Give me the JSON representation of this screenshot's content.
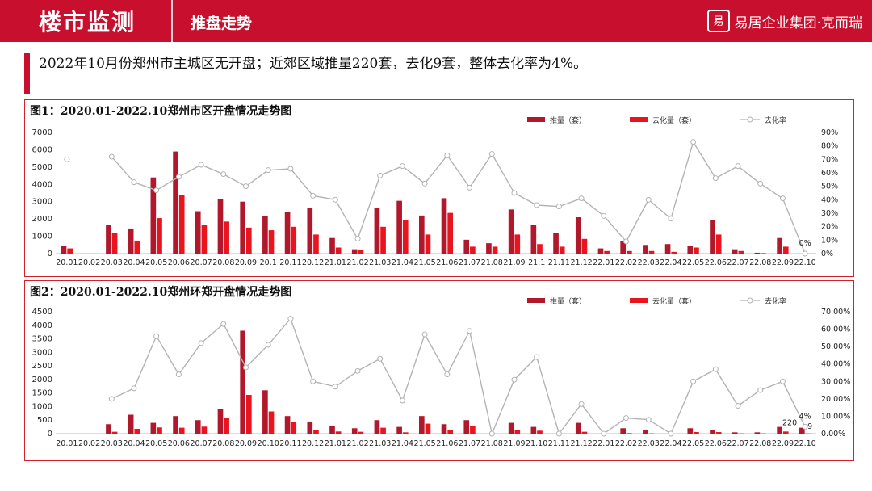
{
  "header": {
    "title": "楼市监测",
    "subtitle": "推盘走势",
    "logo_text": "易居企业集团·克而瑞",
    "logo_seal": "易"
  },
  "summary": "2022年10月份郑州市主城区无开盘；近郊区域推量220套，去化9套，整体去化率为4%。",
  "colors": {
    "brand": "#c8102e",
    "supply": "#b2182b",
    "sold": "#e8141e",
    "rate": "#b3b3b3"
  },
  "chart_data": [
    {
      "type": "bar",
      "title": "图1：2020.01-2022.10郑州市区开盘情况走势图",
      "legend": [
        "推量（套）",
        "去化量（套）",
        "去化率"
      ],
      "categories": [
        "20.01",
        "20.02",
        "20.03",
        "20.04",
        "20.05",
        "20.06",
        "20.07",
        "20.08",
        "20.09",
        "20.1",
        "20.11",
        "20.12",
        "21.01",
        "21.02",
        "21.03",
        "21.04",
        "21.05",
        "21.06",
        "21.07",
        "21.08",
        "21.09",
        "21.1",
        "21.11",
        "21.12",
        "22.01",
        "22.02",
        "22.03",
        "22.04",
        "22.05",
        "22.06",
        "22.07",
        "22.08",
        "22.09",
        "22.10"
      ],
      "series": [
        {
          "name": "推量（套）",
          "axis": "left",
          "values": [
            450,
            0,
            1650,
            1450,
            4400,
            5900,
            2450,
            3150,
            3000,
            2150,
            2400,
            2650,
            900,
            250,
            2650,
            3050,
            2200,
            3200,
            800,
            600,
            2550,
            1650,
            1200,
            2100,
            300,
            700,
            500,
            550,
            450,
            1950,
            250,
            50,
            900,
            0
          ]
        },
        {
          "name": "去化量（套）",
          "axis": "left",
          "values": [
            300,
            0,
            1200,
            750,
            2050,
            3400,
            1650,
            1850,
            1500,
            1350,
            1550,
            1100,
            350,
            200,
            1550,
            1950,
            1100,
            2350,
            400,
            400,
            1100,
            550,
            400,
            850,
            150,
            150,
            150,
            100,
            350,
            1100,
            150,
            30,
            400,
            0
          ]
        },
        {
          "name": "去化率",
          "axis": "right",
          "values": [
            70,
            null,
            72,
            53,
            47,
            57,
            66,
            59,
            50,
            62,
            63,
            43,
            40,
            11,
            58,
            65,
            52,
            73,
            49,
            74,
            45,
            36,
            35,
            41,
            28,
            9,
            40,
            26,
            83,
            56,
            65,
            52,
            41,
            0
          ]
        }
      ],
      "ylim": [
        0,
        7000
      ],
      "y_ticks": [
        "0",
        "1000",
        "2000",
        "3000",
        "4000",
        "5000",
        "6000",
        "7000"
      ],
      "y2lim": [
        0,
        90
      ],
      "y2_ticks": [
        "0%",
        "10%",
        "20%",
        "30%",
        "40%",
        "50%",
        "60%",
        "70%",
        "80%",
        "90%"
      ],
      "annotations": [
        {
          "text": "0%",
          "index": 33,
          "series": "去化率"
        }
      ]
    },
    {
      "type": "bar",
      "title": "图2：2020.01-2022.10郑州环郑开盘情况走势图",
      "legend": [
        "推量（套）",
        "去化量（套）",
        "去化率"
      ],
      "categories": [
        "20.01",
        "20.02",
        "20.03",
        "20.04",
        "20.05",
        "20.06",
        "20.07",
        "20.08",
        "20.09",
        "20.10",
        "20.11",
        "20.12",
        "21.01",
        "21.02",
        "21.03",
        "21.04",
        "21.05",
        "21.06",
        "21.07",
        "21.08",
        "21.09",
        "21.10",
        "21.11",
        "21.12",
        "22.01",
        "22.02",
        "22.03",
        "22.04",
        "22.05",
        "22.06",
        "22.07",
        "22.08",
        "22.09",
        "22.10"
      ],
      "series": [
        {
          "name": "推量（套）",
          "axis": "left",
          "values": [
            0,
            0,
            350,
            700,
            400,
            650,
            500,
            900,
            3800,
            1600,
            650,
            450,
            300,
            200,
            500,
            250,
            650,
            350,
            500,
            0,
            400,
            250,
            0,
            400,
            0,
            200,
            150,
            0,
            200,
            150,
            50,
            50,
            250,
            220
          ]
        },
        {
          "name": "去化量（套）",
          "axis": "left",
          "values": [
            0,
            0,
            70,
            180,
            230,
            220,
            260,
            570,
            1430,
            820,
            430,
            140,
            80,
            70,
            220,
            50,
            370,
            120,
            300,
            0,
            120,
            110,
            0,
            70,
            0,
            20,
            10,
            0,
            60,
            60,
            10,
            10,
            80,
            9
          ]
        },
        {
          "name": "去化率",
          "axis": "right",
          "values": [
            null,
            null,
            20,
            26,
            56,
            34,
            52,
            63,
            38,
            51,
            66,
            30,
            27,
            36,
            43,
            19,
            57,
            34,
            59,
            0,
            31,
            44,
            0,
            17,
            0,
            9,
            8,
            0,
            30,
            37,
            16,
            25,
            30,
            4
          ]
        }
      ],
      "ylim": [
        0,
        4500
      ],
      "y_ticks": [
        "0",
        "500",
        "1000",
        "1500",
        "2000",
        "2500",
        "3000",
        "3500",
        "4000",
        "4500"
      ],
      "y2lim": [
        0,
        70
      ],
      "y2_ticks": [
        "0.00%",
        "10.00%",
        "20.00%",
        "30.00%",
        "40.00%",
        "50.00%",
        "60.00%",
        "70.00%"
      ],
      "annotations": [
        {
          "text": "220",
          "index": 33,
          "series": "推量（套）"
        },
        {
          "text": "4%",
          "index": 33,
          "series": "去化率"
        },
        {
          "text": "9",
          "index": 33,
          "series": "去化量（套）"
        }
      ]
    }
  ]
}
